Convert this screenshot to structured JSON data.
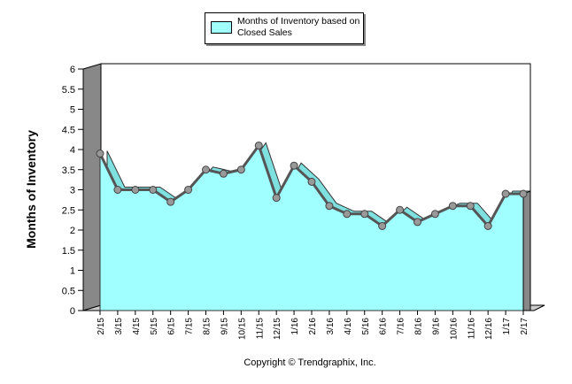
{
  "legend": {
    "label": "Months of Inventory based on Closed Sales"
  },
  "footer": {
    "copyright": "Copyright © Trendgraphix, Inc."
  },
  "colors": {
    "area_fill": "#a0ffff",
    "line": "#555555",
    "marker": "#999999",
    "frame": "#cccccc"
  },
  "chart_data": {
    "type": "area",
    "title": "",
    "xlabel": "",
    "ylabel": "Months of Inventory",
    "ylim": [
      0,
      6
    ],
    "yticks": [
      "0",
      "0.5",
      "1",
      "1.5",
      "2",
      "2.5",
      "3",
      "3.5",
      "4",
      "4.5",
      "5",
      "5.5",
      "6"
    ],
    "categories": [
      "2/15",
      "3/15",
      "4/15",
      "5/15",
      "6/15",
      "7/15",
      "8/15",
      "9/15",
      "10/15",
      "11/15",
      "12/15",
      "1/16",
      "2/16",
      "3/16",
      "4/16",
      "5/16",
      "6/16",
      "7/16",
      "8/16",
      "9/16",
      "10/16",
      "11/16",
      "12/16",
      "1/17",
      "2/17"
    ],
    "series": [
      {
        "name": "Months of Inventory based on Closed Sales",
        "values": [
          3.9,
          3.0,
          3.0,
          3.0,
          2.7,
          3.0,
          3.5,
          3.4,
          3.5,
          4.1,
          2.8,
          3.6,
          3.2,
          2.6,
          2.4,
          2.4,
          2.1,
          2.5,
          2.2,
          2.4,
          2.6,
          2.6,
          2.1,
          2.9,
          2.9
        ]
      }
    ],
    "legend_position": "top-center",
    "grid": false
  }
}
